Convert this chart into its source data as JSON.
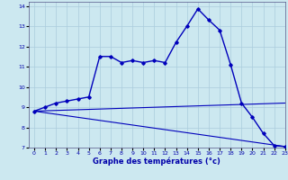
{
  "bg_color": "#cce8f0",
  "grid_color": "#aaccdd",
  "line_color": "#0000bb",
  "xlim": [
    -0.5,
    23
  ],
  "ylim": [
    7,
    14.2
  ],
  "xticks": [
    0,
    1,
    2,
    3,
    4,
    5,
    6,
    7,
    8,
    9,
    10,
    11,
    12,
    13,
    14,
    15,
    16,
    17,
    18,
    19,
    20,
    21,
    22,
    23
  ],
  "yticks": [
    7,
    8,
    9,
    10,
    11,
    12,
    13,
    14
  ],
  "curve1_x": [
    0,
    1,
    2,
    3,
    4,
    5,
    6,
    7,
    8,
    9,
    10,
    11,
    12,
    13,
    14,
    15,
    16,
    17,
    18,
    19,
    20,
    21,
    22,
    23
  ],
  "curve1_y": [
    8.8,
    9.0,
    9.2,
    9.3,
    9.4,
    9.5,
    11.5,
    11.5,
    11.2,
    11.3,
    11.2,
    11.3,
    11.2,
    12.2,
    13.0,
    13.85,
    13.3,
    12.8,
    11.1,
    9.2,
    8.5,
    7.7,
    7.1,
    7.05
  ],
  "curve2_x": [
    0,
    23
  ],
  "curve2_y": [
    8.8,
    9.2
  ],
  "curve3_x": [
    0,
    23
  ],
  "curve3_y": [
    8.8,
    7.05
  ],
  "xlabel": "Graphe des températures (°c)"
}
